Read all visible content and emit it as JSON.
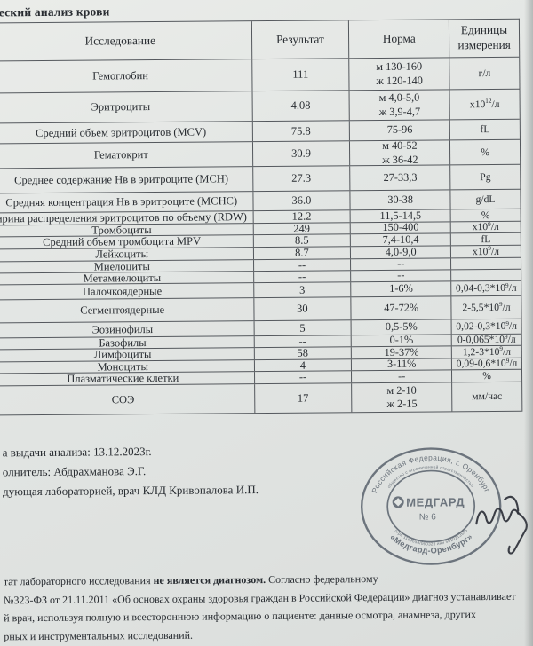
{
  "title": "еский анализ крови",
  "table": {
    "headers": [
      "Исследование",
      "Результат",
      "Норма",
      "Единицы измерения"
    ],
    "rows": [
      {
        "name": "Гемоглобин",
        "result": "111",
        "norm": [
          "м 130-160",
          "ж 120-140"
        ],
        "units": "г/л"
      },
      {
        "name": "Эритроциты",
        "result": "4.08",
        "norm": [
          "м 4,0-5,0",
          "ж 3,9-4,7"
        ],
        "units": "х10^{12}/л"
      },
      {
        "name": "Средний объем эритроцитов (MCV)",
        "result": "75.8",
        "norm": [
          "75-96"
        ],
        "units": "fL"
      },
      {
        "name": "Гематокрит",
        "result": "30.9",
        "norm": [
          "м 40-52",
          "ж 36-42"
        ],
        "units": "%"
      },
      {
        "name": "Среднее содержание Нв в эритроците (МСН)",
        "result": "27.3",
        "norm": [
          "27-33,3"
        ],
        "units": "Pg"
      },
      {
        "name": "Средняя концентрация Нв в эритроците (МСНС)",
        "result": "36.0",
        "norm": [
          "30-38"
        ],
        "units": "g/dL"
      },
      {
        "name": "ирина распределения эритроцитов по объему (RDW)",
        "result": "12.2",
        "norm": [
          "11,5-14,5"
        ],
        "units": "%"
      },
      {
        "name": "Тромбоциты",
        "result": "249",
        "norm": [
          "150-400"
        ],
        "units": "х10^{9}/л"
      },
      {
        "name": "Средний объем тромбоцита MPV",
        "result": "8.5",
        "norm": [
          "7,4-10,4"
        ],
        "units": "fL"
      },
      {
        "name": "Лейкоциты",
        "result": "8.7",
        "norm": [
          "4,0-9,0"
        ],
        "units": "х10^{9}/л"
      },
      {
        "name": "Миелоциты",
        "result": "--",
        "norm": [
          "--"
        ],
        "units": ""
      },
      {
        "name": "Метамиелоциты",
        "result": "--",
        "norm": [
          "--"
        ],
        "units": ""
      },
      {
        "name": "Палочкоядерные",
        "result": "3",
        "norm": [
          "1-6%"
        ],
        "units": "0,04-0,3*10^{9}/л"
      },
      {
        "name": "Сегментоядерные",
        "result": "30",
        "norm": [
          "47-72%"
        ],
        "units": "2-5,5*10^{9}/л"
      },
      {
        "name": "Эозинофилы",
        "result": "5",
        "norm": [
          "0,5-5%"
        ],
        "units": "0,02-0,3*10^{9}/л"
      },
      {
        "name": "Базофилы",
        "result": "--",
        "norm": [
          "0-1%"
        ],
        "units": "0-0,065*10^{9}/л"
      },
      {
        "name": "Лимфоциты",
        "result": "58",
        "norm": [
          "19-37%"
        ],
        "units": "1,2-3*10^{9}/л"
      },
      {
        "name": "Моноциты",
        "result": "4",
        "norm": [
          "3-11%"
        ],
        "units": "0,09-0,6*10^{9}/л"
      },
      {
        "name": "Плазматические клетки",
        "result": "--",
        "norm": [
          "--"
        ],
        "units": "%"
      },
      {
        "name": "СОЭ",
        "result": "17",
        "norm": [
          "м 2-10",
          "ж 2-15"
        ],
        "units": "мм/час"
      }
    ]
  },
  "footer": {
    "date_line": "а выдачи анализа: 13.12.2023г.",
    "executor_line": "олнитель: Абдрахманова Э.Г.",
    "lab_head_line": "дующая лабораторией, врач КЛД Кривопалова И.П."
  },
  "stamp": {
    "arc_top": "Российская Федерация, г. Оренбург",
    "arc_top_small": "общество с ограниченной ответственностью",
    "center_name": "МЕДГАРД",
    "center_number": "№ 6",
    "arc_bottom": "«Медгард-Оренбург»",
    "arc_bottom_small": "огрн 1164658/060328 инн 5610213595"
  },
  "disclaimer": {
    "line1_pre": "тат лабораторного исследования ",
    "line1_bold": "не является диагнозом.",
    "line1_post": " Согласно федеральному",
    "line2": "№323-ФЗ от 21.11.2011 «Об основах охраны здоровья граждан в Российской Федерации» диагноз устанавливает",
    "line3": "й врач, используя полную и всестороннюю информацию о пациенте: данные осмотра, анамнеза, других",
    "line4": "рных и инструментальных исследований."
  },
  "colors": {
    "stamp_ink": "#5d6670",
    "pen_ink": "#2c3038",
    "paper": "#e2e5e3",
    "table_line": "#54585d"
  }
}
